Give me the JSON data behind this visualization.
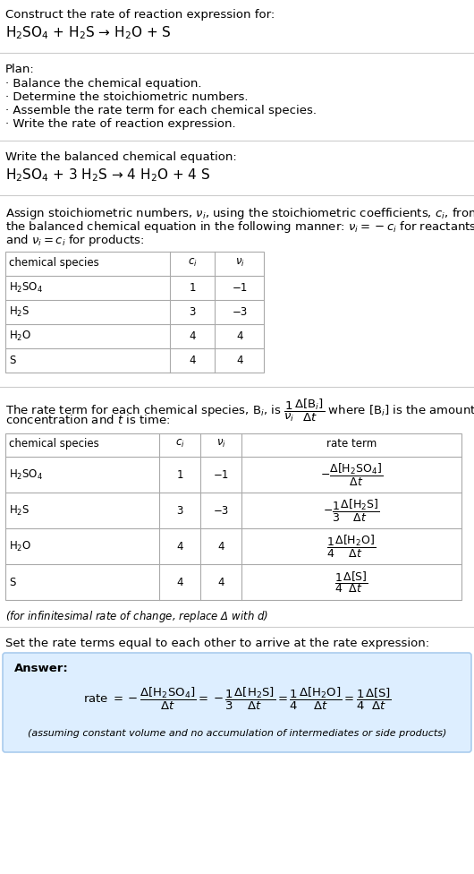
{
  "bg_color": "#ffffff",
  "text_color": "#000000",
  "answer_bg_color": "#ddeeff",
  "answer_border_color": "#aaccee",
  "title_line1": "Construct the rate of reaction expression for:",
  "title_line2": "H$_2$SO$_4$ + H$_2$S → H$_2$O + S",
  "plan_header": "Plan:",
  "plan_items": [
    "· Balance the chemical equation.",
    "· Determine the stoichiometric numbers.",
    "· Assemble the rate term for each chemical species.",
    "· Write the rate of reaction expression."
  ],
  "balanced_header": "Write the balanced chemical equation:",
  "balanced_eq": "H$_2$SO$_4$ + 3 H$_2$S → 4 H$_2$O + 4 S",
  "stoich_intro_lines": [
    "Assign stoichiometric numbers, $\\nu_i$, using the stoichiometric coefficients, $c_i$, from",
    "the balanced chemical equation in the following manner: $\\nu_i = -c_i$ for reactants",
    "and $\\nu_i = c_i$ for products:"
  ],
  "table1_headers": [
    "chemical species",
    "$c_i$",
    "$\\nu_i$"
  ],
  "table1_rows": [
    [
      "H$_2$SO$_4$",
      "1",
      "−1"
    ],
    [
      "H$_2$S",
      "3",
      "−3"
    ],
    [
      "H$_2$O",
      "4",
      "4"
    ],
    [
      "S",
      "4",
      "4"
    ]
  ],
  "rate_term_intro_lines": [
    "The rate term for each chemical species, B$_i$, is $\\dfrac{1}{\\nu_i}\\dfrac{\\Delta[\\mathrm{B}_i]}{\\Delta t}$ where [B$_i$] is the amount",
    "concentration and $t$ is time:"
  ],
  "table2_headers": [
    "chemical species",
    "$c_i$",
    "$\\nu_i$",
    "rate term"
  ],
  "table2_rows": [
    [
      "H$_2$SO$_4$",
      "1",
      "−1",
      "$-\\dfrac{\\Delta[\\mathrm{H_2SO_4}]}{\\Delta t}$"
    ],
    [
      "H$_2$S",
      "3",
      "−3",
      "$-\\dfrac{1}{3}\\dfrac{\\Delta[\\mathrm{H_2S}]}{\\Delta t}$"
    ],
    [
      "H$_2$O",
      "4",
      "4",
      "$\\dfrac{1}{4}\\dfrac{\\Delta[\\mathrm{H_2O}]}{\\Delta t}$"
    ],
    [
      "S",
      "4",
      "4",
      "$\\dfrac{1}{4}\\dfrac{\\Delta[\\mathrm{S}]}{\\Delta t}$"
    ]
  ],
  "infinitesimal_note": "(for infinitesimal rate of change, replace Δ with $d$)",
  "set_equal_text": "Set the rate terms equal to each other to arrive at the rate expression:",
  "answer_label": "Answer:",
  "answer_note": "(assuming constant volume and no accumulation of intermediates or side products)"
}
